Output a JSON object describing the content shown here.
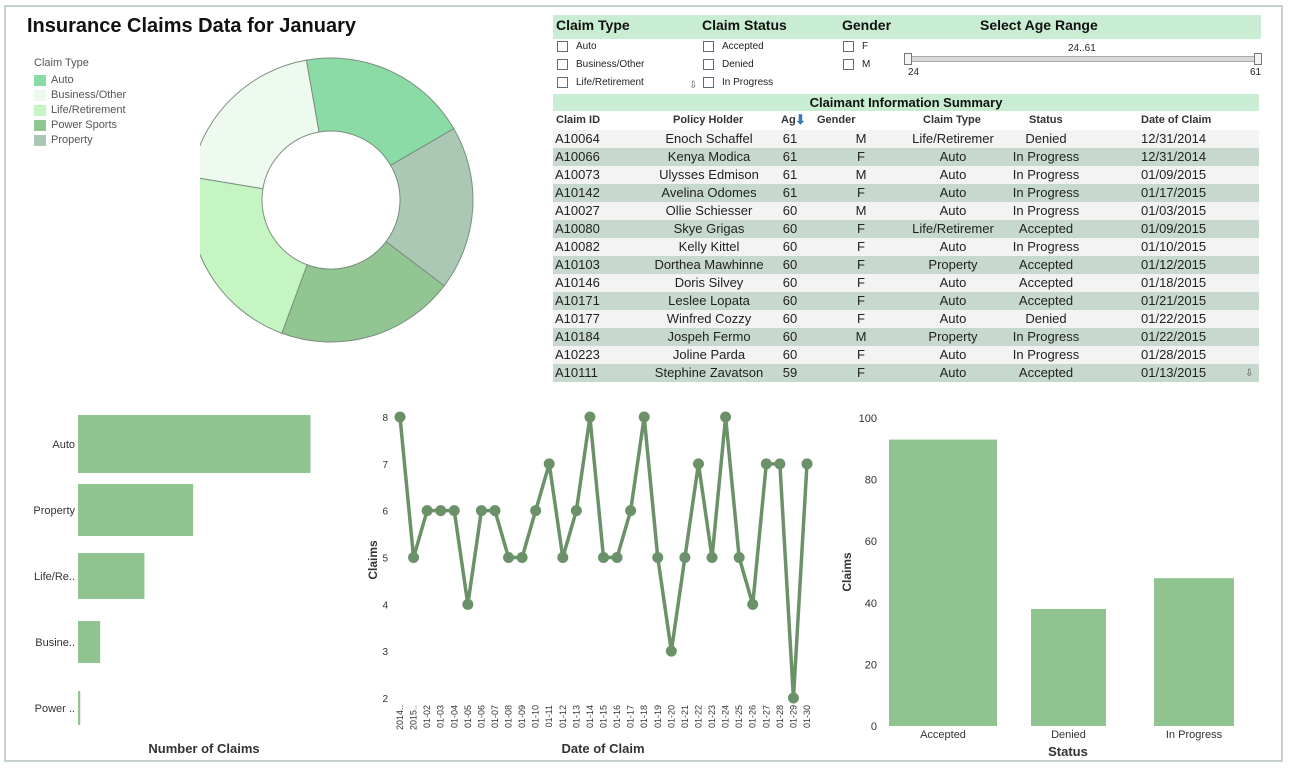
{
  "title": "Insurance Claims Data for January",
  "filters": {
    "claim_type": {
      "label": "Claim Type",
      "options": [
        "Auto",
        "Business/Other",
        "Life/Retirement"
      ]
    },
    "claim_status": {
      "label": "Claim Status",
      "options": [
        "Accepted",
        "Denied",
        "In Progress"
      ]
    },
    "gender": {
      "label": "Gender",
      "options": [
        "F",
        "M"
      ]
    },
    "age_range": {
      "label": "Select Age Range",
      "value_label": "24..61",
      "min_label": "24",
      "max_label": "61",
      "min": 24,
      "max": 61
    }
  },
  "summary": {
    "title": "Claimant Information Summary",
    "columns": [
      "Claim ID",
      "Policy Holder",
      "Ag",
      "Gender",
      "Claim Type",
      "Status",
      "Date of Claim"
    ],
    "rows": [
      [
        "A10064",
        "Enoch Schaffel",
        "61",
        "M",
        "Life/Retiremer",
        "Denied",
        "12/31/2014"
      ],
      [
        "A10066",
        "Kenya Modica",
        "61",
        "F",
        "Auto",
        "In Progress",
        "12/31/2014"
      ],
      [
        "A10073",
        "Ulysses Edmison",
        "61",
        "M",
        "Auto",
        "In Progress",
        "01/09/2015"
      ],
      [
        "A10142",
        "Avelina Odomes",
        "61",
        "F",
        "Auto",
        "In Progress",
        "01/17/2015"
      ],
      [
        "A10027",
        "Ollie Schiesser",
        "60",
        "M",
        "Auto",
        "In Progress",
        "01/03/2015"
      ],
      [
        "A10080",
        "Skye Grigas",
        "60",
        "F",
        "Life/Retiremer",
        "Accepted",
        "01/09/2015"
      ],
      [
        "A10082",
        "Kelly Kittel",
        "60",
        "F",
        "Auto",
        "In Progress",
        "01/10/2015"
      ],
      [
        "A10103",
        "Dorthea Mawhinne",
        "60",
        "F",
        "Property",
        "Accepted",
        "01/12/2015"
      ],
      [
        "A10146",
        "Doris Silvey",
        "60",
        "F",
        "Auto",
        "Accepted",
        "01/18/2015"
      ],
      [
        "A10171",
        "Leslee Lopata",
        "60",
        "F",
        "Auto",
        "Accepted",
        "01/21/2015"
      ],
      [
        "A10177",
        "Winfred Cozzy",
        "60",
        "F",
        "Auto",
        "Denied",
        "01/22/2015"
      ],
      [
        "A10184",
        "Jospeh Fermo",
        "60",
        "M",
        "Property",
        "In Progress",
        "01/22/2015"
      ],
      [
        "A10223",
        "Joline Parda",
        "60",
        "F",
        "Auto",
        "In Progress",
        "01/28/2015"
      ],
      [
        "A10111",
        "Stephine Zavatson",
        "59",
        "F",
        "Auto",
        "Accepted",
        "01/13/2015"
      ]
    ]
  },
  "colors": {
    "accent": "#c9edd2",
    "bar": "#8fc490",
    "line": "#6a9168",
    "row_alt": "#c7d9cf",
    "row_plain": "#f3f3f3"
  },
  "chart_data": [
    {
      "type": "pie",
      "title": "",
      "legend_title": "Claim Type",
      "categories": [
        "Auto",
        "Business/Other",
        "Life/Retirement",
        "Power Sports",
        "Property"
      ],
      "colors": [
        "#8adba5",
        "#eefaee",
        "#c5f5c2",
        "#91c591",
        "#abc8b5"
      ],
      "values": [
        19.4,
        19.6,
        22.0,
        20.3,
        18.7
      ]
    },
    {
      "type": "bar",
      "orientation": "horizontal",
      "categories": [
        "Auto",
        "Property",
        "Life/Re..",
        "Busine..",
        "Power .."
      ],
      "values": [
        105,
        52,
        30,
        10,
        1
      ],
      "xlabel": "Number of Claims",
      "xlim": [
        0,
        110
      ]
    },
    {
      "type": "line",
      "x": [
        "2014..",
        "2015..",
        "01-02",
        "01-03",
        "01-04",
        "01-05",
        "01-06",
        "01-07",
        "01-08",
        "01-09",
        "01-10",
        "01-11",
        "01-12",
        "01-13",
        "01-14",
        "01-15",
        "01-16",
        "01-17",
        "01-18",
        "01-19",
        "01-20",
        "01-21",
        "01-22",
        "01-23",
        "01-24",
        "01-25",
        "01-26",
        "01-27",
        "01-28",
        "01-29",
        "01-30"
      ],
      "values": [
        8,
        5,
        6,
        6,
        6,
        4,
        6,
        6,
        5,
        5,
        6,
        7,
        5,
        6,
        8,
        5,
        5,
        6,
        8,
        5,
        3,
        5,
        7,
        5,
        8,
        5,
        4,
        7,
        7,
        2,
        7
      ],
      "xlabel": "Date of Claim",
      "ylabel": "Claims",
      "ylim": [
        2,
        8
      ],
      "yticks": [
        "2",
        "3",
        "4",
        "5",
        "6",
        "7",
        "8"
      ]
    },
    {
      "type": "bar",
      "categories": [
        "Accepted",
        "Denied",
        "In Progress"
      ],
      "values": [
        93,
        38,
        48
      ],
      "xlabel": "Status",
      "ylabel": "Claims",
      "ylim": [
        0,
        100
      ],
      "yticks": [
        "0",
        "20",
        "40",
        "60",
        "80",
        "100"
      ]
    }
  ]
}
